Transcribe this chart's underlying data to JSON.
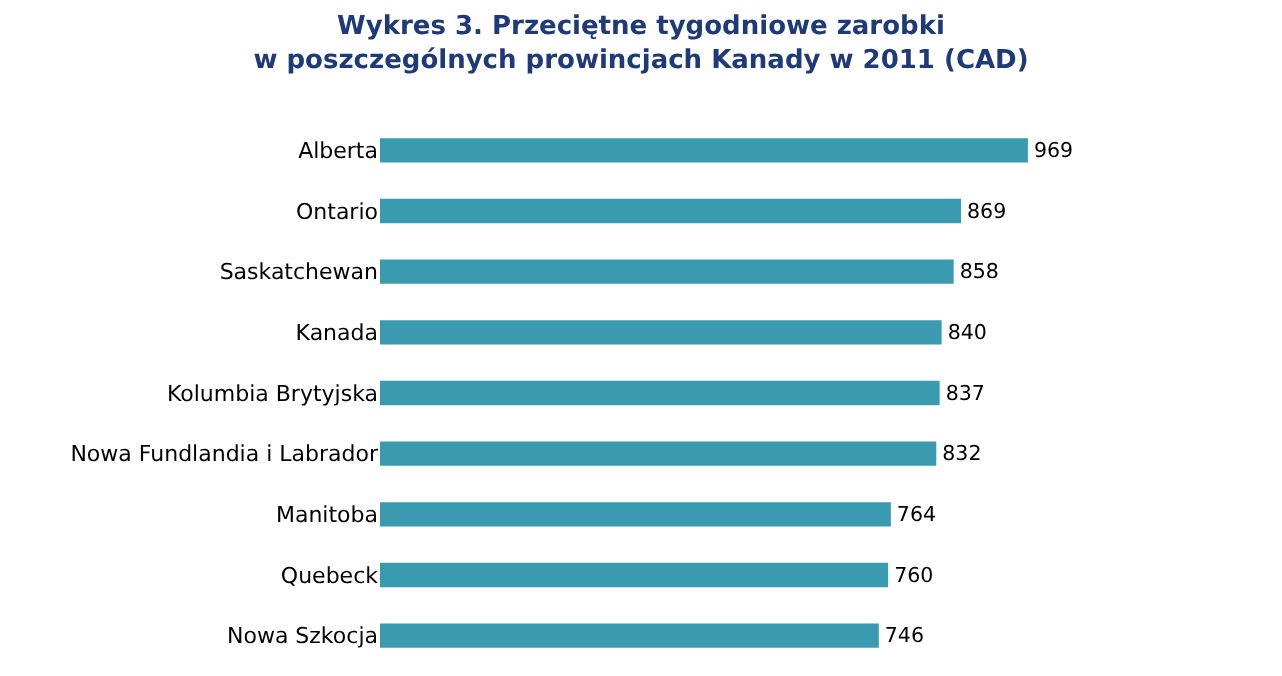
{
  "chart_data": {
    "type": "bar",
    "orientation": "horizontal",
    "title": "Wykres 3. Przeciętne tygodniowe zarobki\nw poszczególnych prowincjach Kanady w 2011 (CAD)",
    "categories": [
      "Alberta",
      "Ontario",
      "Saskatchewan",
      "Kanada",
      "Kolumbia Brytyjska",
      "Nowa Fundlandia i Labrador",
      "Manitoba",
      "Quebeck",
      "Nowa Szkocja"
    ],
    "values": [
      969,
      869,
      858,
      840,
      837,
      832,
      764,
      760,
      746
    ],
    "color": "#3a9bb0",
    "data_labels": true
  }
}
